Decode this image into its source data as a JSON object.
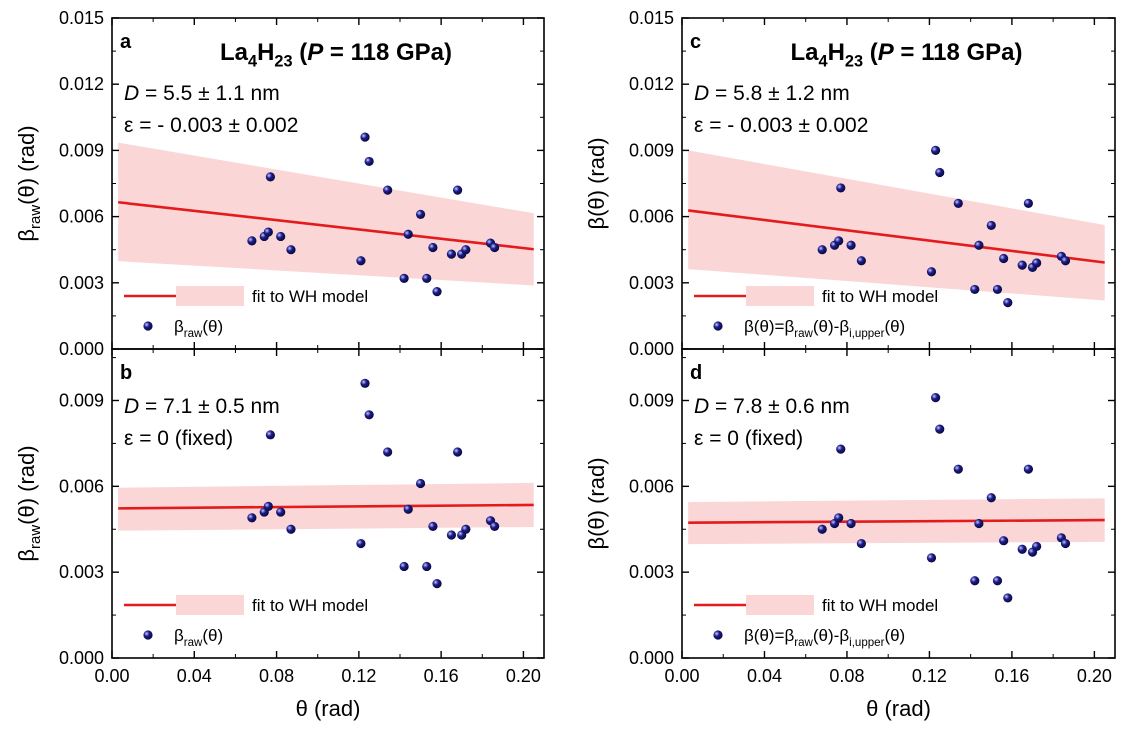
{
  "colors": {
    "points": "#1c1c8a",
    "fit_line": "#e41a1c",
    "band": "#f8c8c8",
    "axes": "#000000"
  },
  "shared": {
    "xlabel": "θ (rad)",
    "x_ticks": [
      "0.00",
      "0.04",
      "0.08",
      "0.12",
      "0.16",
      "0.20"
    ],
    "y_ticks": [
      "0.000",
      "0.003",
      "0.006",
      "0.009",
      "0.012",
      "0.015"
    ],
    "y_ticks_bottom": [
      "0.000",
      "0.003",
      "0.006",
      "0.009"
    ],
    "legend_fit": "fit to WH model",
    "ylabel_left": "βraw(θ) (rad)",
    "ylabel_right": "β(θ) (rad)"
  },
  "chart_data": [
    {
      "panel": "a",
      "type": "scatter",
      "title": "La4H23 (P = 118 GPa)",
      "annotations": [
        "D = 5.5 ± 1.1 nm",
        "ε = - 0.003 ± 0.002"
      ],
      "xlim": [
        0,
        0.21
      ],
      "ylim": [
        0,
        0.015
      ],
      "xlabel": "",
      "ylabel": "βraw(θ) (rad)",
      "fit": {
        "x": [
          0.003,
          0.205
        ],
        "y": [
          0.00665,
          0.00452
        ],
        "band_upper": [
          0.00935,
          0.00615
        ],
        "band_lower": [
          0.00398,
          0.00288
        ]
      },
      "series": [
        {
          "name": "βraw(θ)",
          "x": [
            0.068,
            0.074,
            0.076,
            0.077,
            0.082,
            0.087,
            0.121,
            0.123,
            0.125,
            0.134,
            0.142,
            0.144,
            0.15,
            0.153,
            0.156,
            0.158,
            0.165,
            0.168,
            0.17,
            0.172,
            0.184,
            0.186
          ],
          "y": [
            0.0049,
            0.0051,
            0.0053,
            0.0078,
            0.0051,
            0.0045,
            0.004,
            0.0096,
            0.0085,
            0.0072,
            0.0032,
            0.0052,
            0.0061,
            0.0032,
            0.0046,
            0.0026,
            0.0043,
            0.0072,
            0.0043,
            0.0045,
            0.0048,
            0.0046
          ]
        }
      ],
      "legend": {
        "placement": "bottom-left",
        "entries": [
          "fit to WH model",
          "βraw(θ)"
        ]
      }
    },
    {
      "panel": "c",
      "type": "scatter",
      "title": "La4H23 (P = 118 GPa)",
      "annotations": [
        "D = 5.8 ± 1.2 nm",
        "ε = - 0.003 ± 0.002"
      ],
      "xlim": [
        0,
        0.21
      ],
      "ylim": [
        0,
        0.015
      ],
      "xlabel": "",
      "ylabel": "β(θ) (rad)",
      "fit": {
        "x": [
          0.003,
          0.205
        ],
        "y": [
          0.00628,
          0.00392
        ],
        "band_upper": [
          0.009,
          0.00562
        ],
        "band_lower": [
          0.00362,
          0.0022
        ]
      },
      "series": [
        {
          "name": "β(θ)=βraw(θ)-βi,upper(θ)",
          "x": [
            0.068,
            0.074,
            0.076,
            0.077,
            0.082,
            0.087,
            0.121,
            0.123,
            0.125,
            0.134,
            0.142,
            0.144,
            0.15,
            0.153,
            0.156,
            0.158,
            0.165,
            0.168,
            0.17,
            0.172,
            0.184,
            0.186
          ],
          "y": [
            0.0045,
            0.0047,
            0.0049,
            0.0073,
            0.0047,
            0.004,
            0.0035,
            0.009,
            0.008,
            0.0066,
            0.0027,
            0.0047,
            0.0056,
            0.0027,
            0.0041,
            0.0021,
            0.0038,
            0.0066,
            0.0037,
            0.0039,
            0.0042,
            0.004
          ]
        }
      ],
      "legend": {
        "placement": "bottom-left",
        "entries": [
          "fit to WH model",
          "β(θ)=βraw(θ)-βi,upper(θ)"
        ]
      }
    },
    {
      "panel": "b",
      "type": "scatter",
      "title": "",
      "annotations": [
        "D = 7.1 ± 0.5 nm",
        "ε = 0 (fixed)"
      ],
      "xlim": [
        0,
        0.21
      ],
      "ylim": [
        0,
        0.0108
      ],
      "xlabel": "θ (rad)",
      "ylabel": "βraw(θ) (rad)",
      "fit": {
        "x": [
          0.003,
          0.205
        ],
        "y": [
          0.00523,
          0.00535
        ],
        "band_upper": [
          0.00595,
          0.00612
        ],
        "band_lower": [
          0.00445,
          0.00458
        ]
      },
      "series": [
        {
          "name": "βraw(θ)",
          "x": [
            0.068,
            0.074,
            0.076,
            0.077,
            0.082,
            0.087,
            0.121,
            0.123,
            0.125,
            0.134,
            0.142,
            0.144,
            0.15,
            0.153,
            0.156,
            0.158,
            0.165,
            0.168,
            0.17,
            0.172,
            0.184,
            0.186
          ],
          "y": [
            0.0049,
            0.0051,
            0.0053,
            0.0078,
            0.0051,
            0.0045,
            0.004,
            0.0096,
            0.0085,
            0.0072,
            0.0032,
            0.0052,
            0.0061,
            0.0032,
            0.0046,
            0.0026,
            0.0043,
            0.0072,
            0.0043,
            0.0045,
            0.0048,
            0.0046
          ]
        }
      ],
      "legend": {
        "placement": "bottom-left",
        "entries": [
          "fit to WH model",
          "βraw(θ)"
        ]
      }
    },
    {
      "panel": "d",
      "type": "scatter",
      "title": "",
      "annotations": [
        "D = 7.8 ± 0.6 nm",
        "ε = 0 (fixed)"
      ],
      "xlim": [
        0,
        0.21
      ],
      "ylim": [
        0,
        0.0108
      ],
      "xlabel": "θ (rad)",
      "ylabel": "β(θ) (rad)",
      "fit": {
        "x": [
          0.003,
          0.205
        ],
        "y": [
          0.00473,
          0.00482
        ],
        "band_upper": [
          0.00545,
          0.00558
        ],
        "band_lower": [
          0.00398,
          0.00406
        ]
      },
      "series": [
        {
          "name": "β(θ)=βraw(θ)-βi,upper(θ)",
          "x": [
            0.068,
            0.074,
            0.076,
            0.077,
            0.082,
            0.087,
            0.121,
            0.123,
            0.125,
            0.134,
            0.142,
            0.144,
            0.15,
            0.153,
            0.156,
            0.158,
            0.165,
            0.168,
            0.17,
            0.172,
            0.184,
            0.186
          ],
          "y": [
            0.0045,
            0.0047,
            0.0049,
            0.0073,
            0.0047,
            0.004,
            0.0035,
            0.0091,
            0.008,
            0.0066,
            0.0027,
            0.0047,
            0.0056,
            0.0027,
            0.0041,
            0.0021,
            0.0038,
            0.0066,
            0.0037,
            0.0039,
            0.0042,
            0.004
          ]
        }
      ],
      "legend": {
        "placement": "bottom-left",
        "entries": [
          "fit to WH model",
          "β(θ)=βraw(θ)-βi,upper(θ)"
        ]
      }
    }
  ]
}
